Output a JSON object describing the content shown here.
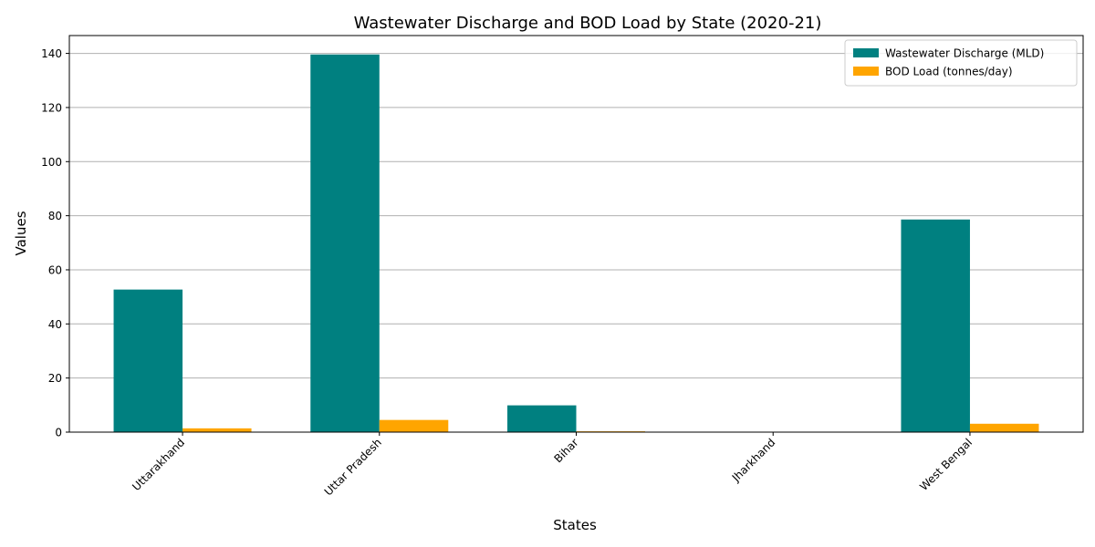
{
  "chart_data": {
    "type": "bar",
    "title": "Wastewater Discharge and BOD Load by State (2020-21)",
    "xlabel": "States",
    "ylabel": "Values",
    "categories": [
      "Uttarakhand",
      "Uttar Pradesh",
      "Bihar",
      "Jharkhand",
      "West Bengal"
    ],
    "series": [
      {
        "name": "Wastewater Discharge (MLD)",
        "color": "#008080",
        "values": [
          52.7,
          139.6,
          9.9,
          0.0,
          78.6
        ]
      },
      {
        "name": "BOD Load (tonnes/day)",
        "color": "#FFA500",
        "values": [
          1.4,
          4.5,
          0.3,
          0.0,
          3.1
        ]
      }
    ],
    "ylim": [
      0,
      146.6
    ],
    "yticks": [
      0,
      20,
      40,
      60,
      80,
      100,
      120,
      140
    ],
    "grid": "y",
    "legend_position": "top-right"
  }
}
